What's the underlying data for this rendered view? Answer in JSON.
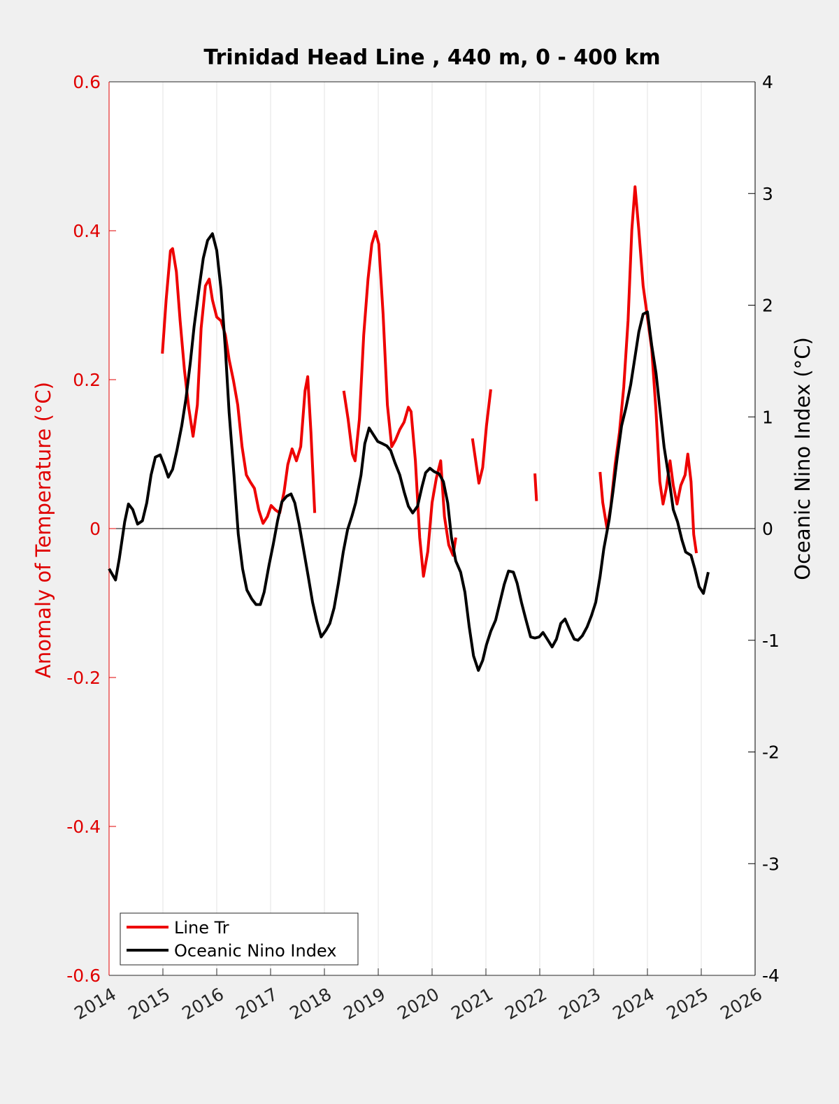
{
  "chart_data": {
    "type": "line",
    "title": "Trinidad Head Line , 440 m, 0 - 400 km",
    "ylabel": "Anomaly of Temperature (°C)",
    "y2label": "Oceanic Nino Index (°C)",
    "ycolor": "#e00000",
    "y2color": "#000000",
    "xlim": [
      2014,
      2026
    ],
    "xticks": [
      2014,
      2015,
      2016,
      2017,
      2018,
      2019,
      2020,
      2021,
      2022,
      2023,
      2024,
      2025,
      2026
    ],
    "ylim": [
      -0.6,
      0.6
    ],
    "yticks": [
      -0.6,
      -0.4,
      -0.2,
      0,
      0.2,
      0.4,
      0.6
    ],
    "y2lim": [
      -4,
      4
    ],
    "y2ticks": [
      -4,
      -3,
      -2,
      -1,
      0,
      1,
      2,
      3,
      4
    ],
    "grid": "x",
    "zero_line": true,
    "legend": "lower left",
    "series": [
      {
        "name": "Line Tr",
        "color": "#ee0000",
        "x": [
          2014.99,
          2015.06,
          2015.14,
          2015.18,
          2015.25,
          2015.32,
          2015.4,
          2015.48,
          2015.56,
          2015.64,
          2015.71,
          2015.79,
          2015.86,
          2015.92,
          2016.0,
          2016.08,
          2016.16,
          2016.23,
          2016.31,
          2016.39,
          2016.47,
          2016.55,
          2016.62,
          2016.7,
          2016.78,
          2016.86,
          2016.94,
          2017.01,
          2017.09,
          2017.17,
          2017.25,
          2017.32,
          2017.4,
          2017.48,
          2017.56,
          2017.64,
          2017.69,
          2017.75,
          2017.82,
          2018.1,
          2018.36,
          2018.44,
          2018.52,
          2018.57,
          2018.65,
          2018.73,
          2018.81,
          2018.88,
          2018.95,
          2019.01,
          2019.09,
          2019.17,
          2019.25,
          2019.32,
          2019.4,
          2019.48,
          2019.56,
          2019.61,
          2019.69,
          2019.77,
          2019.84,
          2019.92,
          2020.0,
          2020.08,
          2020.16,
          2020.23,
          2020.31,
          2020.39,
          2020.44,
          2020.6,
          2020.75,
          2020.81,
          2020.87,
          2020.94,
          2021.01,
          2021.09,
          2021.5,
          2021.91,
          2021.94,
          2022.5,
          2023.12,
          2023.17,
          2023.25,
          2023.32,
          2023.4,
          2023.48,
          2023.56,
          2023.64,
          2023.71,
          2023.77,
          2023.84,
          2023.92,
          2024.0,
          2024.08,
          2024.16,
          2024.23,
          2024.29,
          2024.35,
          2024.42,
          2024.48,
          2024.55,
          2024.62,
          2024.7,
          2024.75,
          2024.81,
          2024.86,
          2024.91
        ],
        "values": [
          0.235,
          0.307,
          0.373,
          0.376,
          0.345,
          0.279,
          0.213,
          0.162,
          0.124,
          0.166,
          0.269,
          0.326,
          0.335,
          0.307,
          0.284,
          0.279,
          0.26,
          0.227,
          0.199,
          0.166,
          0.11,
          0.072,
          0.063,
          0.054,
          0.025,
          0.007,
          0.016,
          0.031,
          0.025,
          0.021,
          0.049,
          0.086,
          0.107,
          0.091,
          0.11,
          0.185,
          0.204,
          0.129,
          0.021,
          null,
          0.185,
          0.147,
          0.1,
          0.091,
          0.147,
          0.26,
          0.335,
          0.382,
          0.399,
          0.382,
          0.288,
          0.166,
          0.11,
          0.119,
          0.133,
          0.143,
          0.163,
          0.157,
          0.091,
          -0.012,
          -0.064,
          -0.031,
          0.035,
          0.068,
          0.091,
          0.016,
          -0.022,
          -0.036,
          -0.012,
          null,
          0.121,
          0.091,
          0.061,
          0.082,
          0.138,
          0.187,
          null,
          0.074,
          0.037,
          null,
          0.076,
          0.035,
          0.0,
          0.03,
          0.086,
          0.129,
          0.19,
          0.279,
          0.401,
          0.459,
          0.401,
          0.326,
          0.284,
          0.241,
          0.157,
          0.063,
          0.033,
          0.054,
          0.091,
          0.058,
          0.033,
          0.058,
          0.072,
          0.1,
          0.063,
          -0.008,
          -0.033
        ]
      },
      {
        "name": "Oceanic Nino Index",
        "color": "#000000",
        "axis": "y2",
        "x": [
          2014.0,
          2014.12,
          2014.19,
          2014.29,
          2014.36,
          2014.44,
          2014.53,
          2014.62,
          2014.7,
          2014.78,
          2014.86,
          2014.95,
          2015.03,
          2015.1,
          2015.18,
          2015.26,
          2015.35,
          2015.43,
          2015.51,
          2015.58,
          2015.68,
          2015.75,
          2015.83,
          2015.92,
          2016.0,
          2016.08,
          2016.16,
          2016.23,
          2016.32,
          2016.4,
          2016.48,
          2016.56,
          2016.65,
          2016.73,
          2016.81,
          2016.88,
          2016.97,
          2017.05,
          2017.13,
          2017.21,
          2017.3,
          2017.38,
          2017.45,
          2017.53,
          2017.61,
          2017.7,
          2017.78,
          2017.86,
          2017.94,
          2018.03,
          2018.1,
          2018.18,
          2018.26,
          2018.35,
          2018.43,
          2018.51,
          2018.58,
          2018.68,
          2018.75,
          2018.83,
          2018.91,
          2018.99,
          2019.08,
          2019.16,
          2019.23,
          2019.31,
          2019.4,
          2019.48,
          2019.56,
          2019.64,
          2019.73,
          2019.81,
          2019.88,
          2019.96,
          2020.04,
          2020.13,
          2020.21,
          2020.29,
          2020.36,
          2020.44,
          2020.53,
          2020.61,
          2020.69,
          2020.77,
          2020.86,
          2020.94,
          2021.01,
          2021.09,
          2021.18,
          2021.26,
          2021.34,
          2021.42,
          2021.51,
          2021.58,
          2021.66,
          2021.74,
          2021.83,
          2021.91,
          2021.99,
          2022.06,
          2022.14,
          2022.23,
          2022.31,
          2022.39,
          2022.47,
          2022.56,
          2022.64,
          2022.71,
          2022.79,
          2022.88,
          2022.96,
          2023.04,
          2023.12,
          2023.19,
          2023.29,
          2023.36,
          2023.44,
          2023.52,
          2023.6,
          2023.69,
          2023.77,
          2023.84,
          2023.92,
          2024.0,
          2024.08,
          2024.16,
          2024.23,
          2024.31,
          2024.4,
          2024.48,
          2024.56,
          2024.64,
          2024.71,
          2024.81,
          2024.88,
          2024.96,
          2025.04,
          2025.13
        ],
        "values": [
          -0.36,
          -0.46,
          -0.27,
          0.06,
          0.22,
          0.17,
          0.04,
          0.07,
          0.23,
          0.48,
          0.64,
          0.66,
          0.56,
          0.46,
          0.53,
          0.7,
          0.92,
          1.17,
          1.49,
          1.81,
          2.18,
          2.42,
          2.58,
          2.64,
          2.49,
          2.14,
          1.61,
          1.04,
          0.48,
          -0.05,
          -0.36,
          -0.55,
          -0.63,
          -0.68,
          -0.68,
          -0.57,
          -0.33,
          -0.14,
          0.07,
          0.24,
          0.29,
          0.31,
          0.23,
          0.04,
          -0.18,
          -0.43,
          -0.66,
          -0.83,
          -0.97,
          -0.91,
          -0.85,
          -0.71,
          -0.49,
          -0.21,
          -0.01,
          0.11,
          0.23,
          0.48,
          0.76,
          0.9,
          0.84,
          0.78,
          0.76,
          0.74,
          0.7,
          0.59,
          0.48,
          0.33,
          0.2,
          0.14,
          0.2,
          0.37,
          0.5,
          0.54,
          0.51,
          0.49,
          0.42,
          0.23,
          -0.08,
          -0.29,
          -0.39,
          -0.57,
          -0.88,
          -1.14,
          -1.27,
          -1.18,
          -1.04,
          -0.92,
          -0.82,
          -0.66,
          -0.5,
          -0.38,
          -0.39,
          -0.49,
          -0.66,
          -0.81,
          -0.97,
          -0.98,
          -0.97,
          -0.93,
          -0.99,
          -1.06,
          -0.99,
          -0.85,
          -0.81,
          -0.91,
          -0.99,
          -1.0,
          -0.96,
          -0.88,
          -0.78,
          -0.66,
          -0.43,
          -0.18,
          0.08,
          0.33,
          0.64,
          0.92,
          1.08,
          1.29,
          1.54,
          1.76,
          1.92,
          1.94,
          1.64,
          1.39,
          1.08,
          0.73,
          0.45,
          0.17,
          0.06,
          -0.1,
          -0.21,
          -0.24,
          -0.36,
          -0.52,
          -0.58,
          -0.39
        ]
      }
    ]
  }
}
